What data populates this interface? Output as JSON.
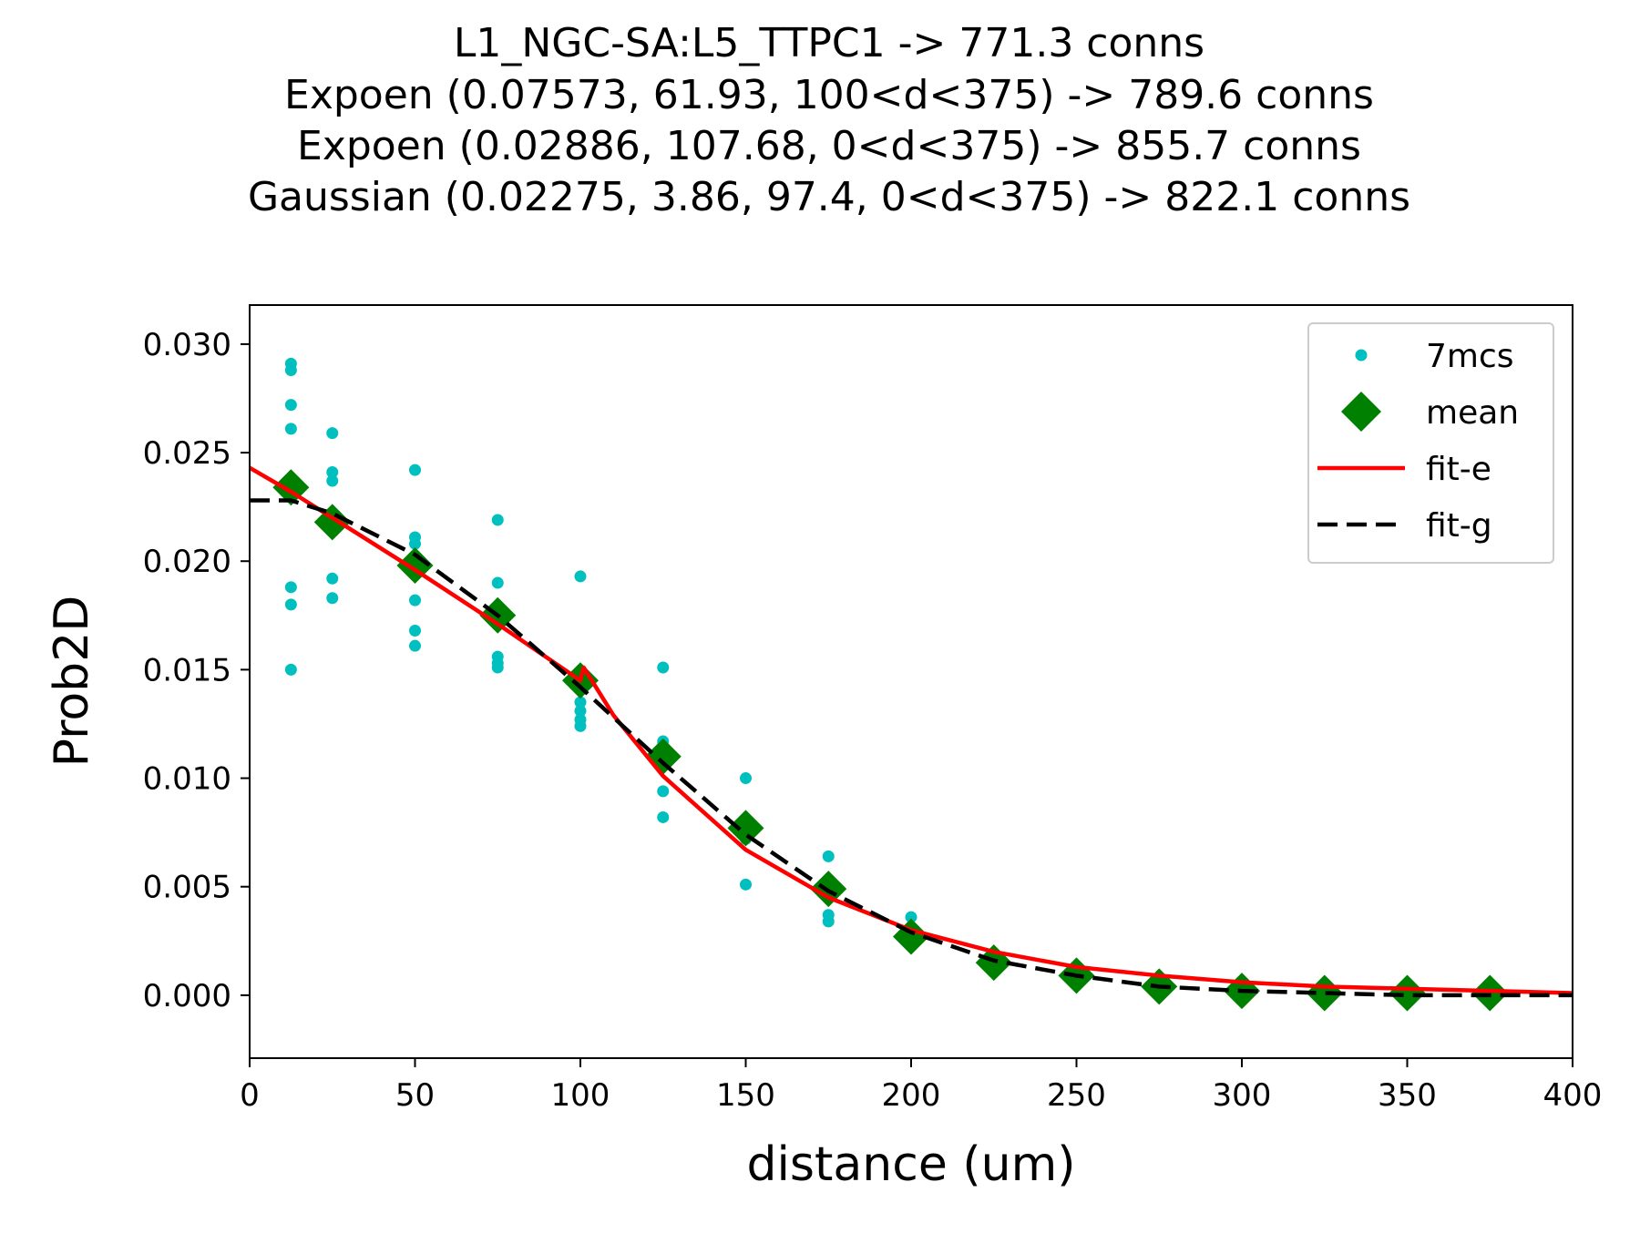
{
  "chart_data": {
    "type": "scatter",
    "title_lines": [
      "L1_NGC-SA:L5_TTPC1 -> 771.3 conns",
      "Expoen (0.07573, 61.93, 100<d<375) -> 789.6 conns",
      "Expoen (0.02886, 107.68, 0<d<375) -> 855.7 conns",
      "Gaussian (0.02275, 3.86, 97.4, 0<d<375) -> 822.1 conns"
    ],
    "xlabel": "distance (um)",
    "ylabel": "Prob2D",
    "xlim": [
      0,
      400
    ],
    "ylim": [
      -0.0029,
      0.0318
    ],
    "x_ticks": [
      0,
      50,
      100,
      150,
      200,
      250,
      300,
      350,
      400
    ],
    "x_tick_labels": [
      "0",
      "50",
      "100",
      "150",
      "200",
      "250",
      "300",
      "350",
      "400"
    ],
    "y_ticks": [
      0.0,
      0.005,
      0.01,
      0.015,
      0.02,
      0.025,
      0.03
    ],
    "y_tick_labels": [
      "0.000",
      "0.005",
      "0.010",
      "0.015",
      "0.020",
      "0.025",
      "0.030"
    ],
    "grid": false,
    "legend_position": "top-right",
    "legend": [
      {
        "label": "7mcs",
        "marker": "dot",
        "color": "#00bfbf"
      },
      {
        "label": "mean",
        "marker": "diamond",
        "color": "#008000"
      },
      {
        "label": "fit-e",
        "marker": "solid-line",
        "color": "#ff0000"
      },
      {
        "label": "fit-g",
        "marker": "dashed-line",
        "color": "#000000"
      }
    ],
    "series": [
      {
        "name": "7mcs",
        "kind": "points",
        "color": "#00bfbf",
        "points": [
          [
            12.5,
            0.0291
          ],
          [
            12.5,
            0.0288
          ],
          [
            12.5,
            0.0272
          ],
          [
            12.5,
            0.0261
          ],
          [
            12.5,
            0.0188
          ],
          [
            12.5,
            0.018
          ],
          [
            12.5,
            0.015
          ],
          [
            25,
            0.0259
          ],
          [
            25,
            0.0241
          ],
          [
            25,
            0.0237
          ],
          [
            25,
            0.0192
          ],
          [
            25,
            0.0183
          ],
          [
            50,
            0.0242
          ],
          [
            50,
            0.0211
          ],
          [
            50,
            0.0208
          ],
          [
            50,
            0.0182
          ],
          [
            50,
            0.0168
          ],
          [
            50,
            0.0161
          ],
          [
            75,
            0.0219
          ],
          [
            75,
            0.019
          ],
          [
            75,
            0.0156
          ],
          [
            75,
            0.0153
          ],
          [
            75,
            0.0151
          ],
          [
            100,
            0.0193
          ],
          [
            100,
            0.0135
          ],
          [
            100,
            0.0131
          ],
          [
            100,
            0.0127
          ],
          [
            100,
            0.0124
          ],
          [
            125,
            0.0151
          ],
          [
            125,
            0.0117
          ],
          [
            125,
            0.0094
          ],
          [
            125,
            0.0082
          ],
          [
            150,
            0.01
          ],
          [
            150,
            0.0072
          ],
          [
            150,
            0.0051
          ],
          [
            175,
            0.0064
          ],
          [
            175,
            0.0037
          ],
          [
            175,
            0.0034
          ],
          [
            200,
            0.0036
          ],
          [
            200,
            0.0027
          ],
          [
            225,
            0.0015
          ],
          [
            250,
            0.0008
          ],
          [
            275,
            0.0004
          ],
          [
            300,
            0.0002
          ],
          [
            325,
            0.0001
          ],
          [
            350,
            0.0001
          ],
          [
            375,
            0.0001
          ]
        ]
      },
      {
        "name": "mean",
        "kind": "points",
        "color": "#008000",
        "points": [
          [
            12.5,
            0.0234
          ],
          [
            25,
            0.0218
          ],
          [
            50,
            0.0198
          ],
          [
            75,
            0.0175
          ],
          [
            100,
            0.0145
          ],
          [
            125,
            0.011
          ],
          [
            150,
            0.0077
          ],
          [
            175,
            0.0049
          ],
          [
            200,
            0.0027
          ],
          [
            225,
            0.0015
          ],
          [
            250,
            0.0009
          ],
          [
            275,
            0.0004
          ],
          [
            300,
            0.0002
          ],
          [
            325,
            0.0001
          ],
          [
            350,
            0.0001
          ],
          [
            375,
            0.0001
          ]
        ]
      },
      {
        "name": "fit-e",
        "kind": "line",
        "color": "#ff0000",
        "points": [
          [
            0,
            0.0243
          ],
          [
            12.5,
            0.0232
          ],
          [
            25,
            0.022
          ],
          [
            50,
            0.0196
          ],
          [
            75,
            0.0171
          ],
          [
            100,
            0.0145
          ],
          [
            101,
            0.0151
          ],
          [
            110,
            0.0129
          ],
          [
            125,
            0.0101
          ],
          [
            150,
            0.0067
          ],
          [
            175,
            0.0045
          ],
          [
            200,
            0.003
          ],
          [
            225,
            0.002
          ],
          [
            250,
            0.0013
          ],
          [
            275,
            0.0009
          ],
          [
            300,
            0.0006
          ],
          [
            325,
            0.0004
          ],
          [
            350,
            0.0003
          ],
          [
            375,
            0.0002
          ],
          [
            400,
            0.0001
          ]
        ]
      },
      {
        "name": "fit-g",
        "kind": "line",
        "color": "#000000",
        "points": [
          [
            0,
            0.0228
          ],
          [
            12.5,
            0.0228
          ],
          [
            25,
            0.0222
          ],
          [
            50,
            0.0203
          ],
          [
            75,
            0.0175
          ],
          [
            100,
            0.0142
          ],
          [
            125,
            0.0107
          ],
          [
            150,
            0.0074
          ],
          [
            175,
            0.0048
          ],
          [
            200,
            0.0029
          ],
          [
            225,
            0.0016
          ],
          [
            250,
            0.0009
          ],
          [
            275,
            0.0004
          ],
          [
            300,
            0.0002
          ],
          [
            325,
            0.0001
          ],
          [
            350,
            0.0
          ],
          [
            375,
            0.0
          ],
          [
            400,
            0.0
          ]
        ]
      }
    ]
  }
}
